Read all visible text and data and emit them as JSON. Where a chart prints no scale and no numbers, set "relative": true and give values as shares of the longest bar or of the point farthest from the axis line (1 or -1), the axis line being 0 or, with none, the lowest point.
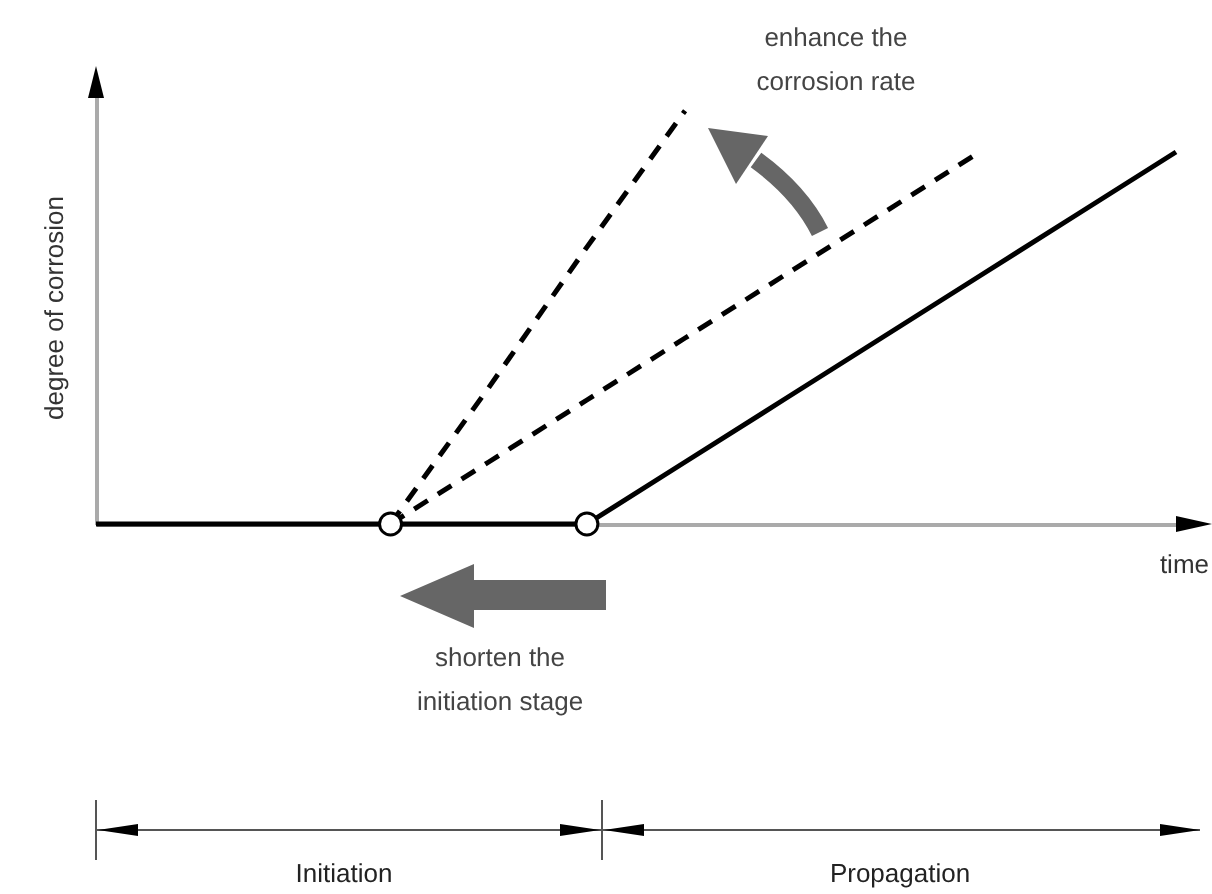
{
  "chart_data": {
    "type": "line",
    "relative": true,
    "xlabel": "time",
    "ylabel": "degree of corrosion",
    "categories": [
      null,
      null,
      null,
      null,
      null,
      null,
      null,
      null,
      null,
      null,
      null,
      null
    ],
    "series": [
      {
        "color": "#000000",
        "line_style": "solid",
        "values": [
          0,
          0,
          0,
          0,
          0,
          0,
          0.15,
          0.3,
          0.45,
          0.6,
          0.75,
          0.9
        ]
      },
      {
        "color": "#000000",
        "line_style": "dashed",
        "values": [
          null,
          null,
          null,
          0,
          0.33,
          0.67,
          1,
          null,
          null,
          null,
          null,
          null
        ]
      },
      {
        "color": "#000000",
        "line_style": "dashed",
        "values": [
          null,
          null,
          null,
          0,
          0.15,
          0.3,
          0.45,
          0.6,
          0.75,
          0.9,
          null,
          null
        ]
      }
    ],
    "annotations": [
      "enhance the corrosion rate",
      "shorten the initiation stage",
      "Initiation",
      "Propagation"
    ]
  }
}
